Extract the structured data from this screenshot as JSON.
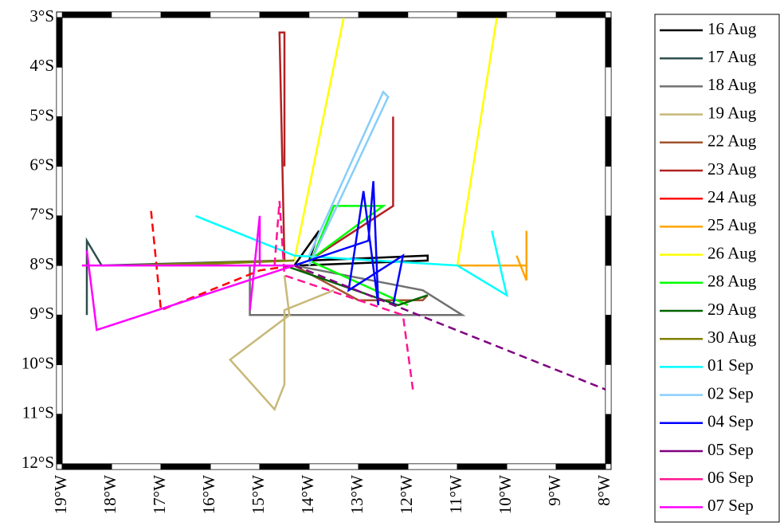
{
  "chart_data": {
    "type": "track",
    "xlim": [
      -19,
      -8
    ],
    "ylim": [
      -12,
      -3
    ],
    "xticks": [
      {
        "value": -19,
        "label": "19°W"
      },
      {
        "value": -18,
        "label": "18°W"
      },
      {
        "value": -17,
        "label": "17°W"
      },
      {
        "value": -16,
        "label": "16°W"
      },
      {
        "value": -15,
        "label": "15°W"
      },
      {
        "value": -14,
        "label": "14°W"
      },
      {
        "value": -13,
        "label": "13°W"
      },
      {
        "value": -12,
        "label": "12°W"
      },
      {
        "value": -11,
        "label": "11°W"
      },
      {
        "value": -10,
        "label": "10°W"
      },
      {
        "value": -9,
        "label": "9°W"
      },
      {
        "value": -8,
        "label": "8°W"
      }
    ],
    "yticks": [
      {
        "value": -3,
        "label": "3°S"
      },
      {
        "value": -4,
        "label": "4°S"
      },
      {
        "value": -5,
        "label": "5°S"
      },
      {
        "value": -6,
        "label": "6°S"
      },
      {
        "value": -7,
        "label": "7°S"
      },
      {
        "value": -8,
        "label": "8°S"
      },
      {
        "value": -9,
        "label": "9°S"
      },
      {
        "value": -10,
        "label": "10°S"
      },
      {
        "value": -11,
        "label": "11°S"
      },
      {
        "value": -12,
        "label": "12°S"
      }
    ],
    "series": [
      {
        "name": "16 Aug",
        "color": "#000000",
        "dashed": false,
        "x": [
          -14.3,
          -13.8,
          -14.0,
          -11.6,
          -11.6,
          -14.2
        ],
        "values": [
          -8.0,
          -7.3,
          -7.9,
          -7.8,
          -7.9,
          -8.0
        ]
      },
      {
        "name": "17 Aug",
        "color": "#2f4f4f",
        "dashed": false,
        "x": [
          -18.5,
          -18.5,
          -18.2,
          -14.5
        ],
        "values": [
          -9.0,
          -7.5,
          -8.0,
          -7.9
        ]
      },
      {
        "name": "18 Aug",
        "color": "#707070",
        "dashed": false,
        "x": [
          -15.2,
          -15.2,
          -10.9,
          -11.7,
          -14.3
        ],
        "values": [
          -8.0,
          -9.0,
          -9.0,
          -8.5,
          -8.0
        ]
      },
      {
        "name": "19 Aug",
        "color": "#c8b878",
        "dashed": false,
        "x": [
          -14.5,
          -14.4,
          -15.6,
          -14.7,
          -14.5,
          -14.5,
          -13.5
        ],
        "values": [
          -8.2,
          -9.0,
          -9.9,
          -10.9,
          -10.4,
          -8.9,
          -8.5
        ]
      },
      {
        "name": "22 Aug",
        "color": "#a0522d",
        "dashed": false,
        "x": [
          -14.3,
          -13.0,
          -11.7,
          -11.6
        ],
        "values": [
          -8.0,
          -8.7,
          -8.7,
          -8.6
        ]
      },
      {
        "name": "23 Aug",
        "color": "#b22222",
        "dashed": false,
        "x": [
          -14.5,
          -14.6,
          -14.5,
          -14.5,
          null,
          -14.0,
          -12.3,
          -12.3
        ],
        "values": [
          -7.9,
          -3.3,
          -3.3,
          -6.0,
          null,
          -7.9,
          -6.8,
          -5.0
        ]
      },
      {
        "name": "24 Aug",
        "color": "#ff0000",
        "dashed": true,
        "x": [
          -17.2,
          -17.0,
          -15.0,
          -14.3
        ],
        "values": [
          -6.9,
          -8.9,
          -8.1,
          -8.0
        ]
      },
      {
        "name": "25 Aug",
        "color": "#ffa500",
        "dashed": false,
        "x": [
          -11.0,
          -9.6,
          -9.6,
          -9.6,
          -9.8
        ],
        "values": [
          -8.0,
          -8.0,
          -7.3,
          -8.3,
          -7.8
        ]
      },
      {
        "name": "26 Aug",
        "color": "#ffff00",
        "dashed": false,
        "x": [
          -14.3,
          -13.3,
          null,
          -11.0,
          -10.2
        ],
        "values": [
          -7.9,
          -3.0,
          null,
          -8.0,
          -3.0
        ]
      },
      {
        "name": "28 Aug",
        "color": "#00ff00",
        "dashed": false,
        "x": [
          -14.0,
          -13.5,
          -12.5,
          -14.0,
          -12.0
        ],
        "values": [
          -8.0,
          -6.8,
          -6.8,
          -7.9,
          -8.8
        ]
      },
      {
        "name": "29 Aug",
        "color": "#006400",
        "dashed": false,
        "x": [
          -14.5,
          -12.2,
          -11.6
        ],
        "values": [
          -8.0,
          -8.8,
          -8.6
        ]
      },
      {
        "name": "30 Aug",
        "color": "#808000",
        "dashed": false,
        "x": [
          -17.7,
          -14.3,
          -16.8
        ],
        "values": [
          -8.0,
          -7.9,
          -8.0
        ]
      },
      {
        "name": "01 Sep",
        "color": "#00ffff",
        "dashed": false,
        "x": [
          -16.3,
          -14.3,
          -11.0,
          -10.0,
          -10.3
        ],
        "values": [
          -7.0,
          -7.8,
          -8.0,
          -8.6,
          -7.3
        ]
      },
      {
        "name": "02 Sep",
        "color": "#87cefa",
        "dashed": false,
        "x": [
          -14.0,
          -12.4,
          -12.5,
          -14.0
        ],
        "values": [
          -8.0,
          -4.6,
          -4.5,
          -7.8
        ]
      },
      {
        "name": "04 Sep",
        "color": "#0000ff",
        "dashed": false,
        "x": [
          -14.3,
          -12.8,
          -12.7,
          -12.6,
          -12.9,
          -13.2,
          -12.1,
          -12.3
        ],
        "values": [
          -8.0,
          -7.5,
          -6.3,
          -8.8,
          -6.5,
          -8.5,
          -7.8,
          -8.8
        ]
      },
      {
        "name": "05 Sep",
        "color": "#800080",
        "dashed": true,
        "x": [
          -14.3,
          -8.0
        ],
        "values": [
          -8.0,
          -10.5
        ]
      },
      {
        "name": "06 Sep",
        "color": "#ff1493",
        "dashed": true,
        "x": [
          -14.7,
          -14.6,
          -14.5,
          -12.1,
          -11.9
        ],
        "values": [
          -8.0,
          -6.7,
          -8.2,
          -9.0,
          -10.5
        ]
      },
      {
        "name": "07 Sep",
        "color": "#ff00ff",
        "dashed": false,
        "x": [
          -18.5,
          -18.3,
          -14.3,
          -18.6,
          -15.0,
          -15.0,
          -15.2
        ],
        "values": [
          -7.7,
          -9.3,
          -8.0,
          -8.0,
          -8.0,
          -7.0,
          -8.9
        ]
      }
    ]
  }
}
